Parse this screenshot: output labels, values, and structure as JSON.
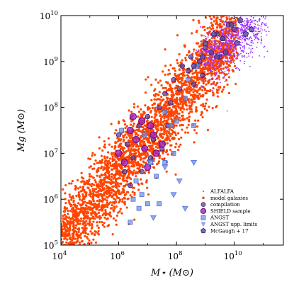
{
  "chart_data": {
    "type": "scatter",
    "xlabel": "M⋆ (M⊙)",
    "ylabel": "Mg (M⊙)",
    "xscale": "log",
    "yscale": "log",
    "xlim": [
      10000,
      500000000000
    ],
    "ylim": [
      100000,
      10000000000
    ],
    "x_ticks": [
      {
        "value": 10000,
        "base": "10",
        "exp": "4"
      },
      {
        "value": 1000000,
        "base": "10",
        "exp": "6"
      },
      {
        "value": 100000000,
        "base": "10",
        "exp": "8"
      },
      {
        "value": 10000000000,
        "base": "10",
        "exp": "10"
      }
    ],
    "y_ticks": [
      {
        "value": 100000,
        "base": "10",
        "exp": "5"
      },
      {
        "value": 1000000,
        "base": "10",
        "exp": "6"
      },
      {
        "value": 10000000,
        "base": "10",
        "exp": "7"
      },
      {
        "value": 100000000,
        "base": "10",
        "exp": "8"
      },
      {
        "value": 1000000000,
        "base": "10",
        "exp": "9"
      },
      {
        "value": 10000000000,
        "base": "10",
        "exp": "10"
      }
    ],
    "legend_position": "bottom-right",
    "series": [
      {
        "name": "ALFALFA",
        "marker": "dot",
        "color": "#9b30ff",
        "distribution": {
          "log_x_center": [
            9.0,
            10.9
          ],
          "log_y_center": [
            9.0,
            9.9
          ],
          "count": 900
        }
      },
      {
        "name": "model galaxies",
        "marker": "dot",
        "color": "#ff4500",
        "distribution": {
          "log_x_center": [
            4.0,
            10.0
          ],
          "log_y_center": [
            5.1,
            9.6
          ],
          "count": 3000
        }
      },
      {
        "name": "compilation",
        "marker": "circle",
        "color": "#6a3d9a",
        "points": [
          [
            6.0,
            7.4
          ],
          [
            6.3,
            7.2
          ],
          [
            6.5,
            6.9
          ],
          [
            6.7,
            7.6
          ],
          [
            7.0,
            7.8
          ],
          [
            7.2,
            7.3
          ],
          [
            7.4,
            8.0
          ],
          [
            7.5,
            7.1
          ],
          [
            7.6,
            8.3
          ],
          [
            7.8,
            8.1
          ],
          [
            7.9,
            8.6
          ],
          [
            8.1,
            8.4
          ],
          [
            8.2,
            8.9
          ],
          [
            8.4,
            8.8
          ],
          [
            8.5,
            9.1
          ],
          [
            8.6,
            8.5
          ],
          [
            8.8,
            9.0
          ],
          [
            9.0,
            9.3
          ],
          [
            9.2,
            9.2
          ],
          [
            9.4,
            9.6
          ],
          [
            9.6,
            9.5
          ],
          [
            9.8,
            9.8
          ],
          [
            10.0,
            9.7
          ],
          [
            6.4,
            6.3
          ],
          [
            6.8,
            6.6
          ],
          [
            7.1,
            6.9
          ],
          [
            6.2,
            6.6
          ],
          [
            7.7,
            7.6
          ],
          [
            8.9,
            8.7
          ],
          [
            9.5,
            9.1
          ]
        ]
      },
      {
        "name": "SHIELD sample",
        "marker": "circle-large",
        "color": "#a020c0",
        "points": [
          [
            6.0,
            7.0
          ],
          [
            6.4,
            7.5
          ],
          [
            6.6,
            7.3
          ],
          [
            6.9,
            7.1
          ],
          [
            7.1,
            7.6
          ],
          [
            7.3,
            7.0
          ],
          [
            6.8,
            7.7
          ],
          [
            7.5,
            7.2
          ],
          [
            6.2,
            6.8
          ],
          [
            7.0,
            6.7
          ],
          [
            6.5,
            7.8
          ],
          [
            7.2,
            7.4
          ]
        ]
      },
      {
        "name": "ANGST",
        "marker": "square",
        "color": "#6f8fe6",
        "points": [
          [
            7.0,
            5.9
          ],
          [
            7.4,
            5.9
          ],
          [
            6.6,
            6.4
          ],
          [
            6.8,
            6.1
          ],
          [
            7.6,
            6.8
          ],
          [
            7.8,
            7.6
          ],
          [
            6.4,
            5.5
          ],
          [
            8.0,
            7.7
          ],
          [
            8.6,
            7.6
          ],
          [
            8.3,
            8.2
          ],
          [
            6.1,
            7.5
          ],
          [
            7.3,
            6.5
          ],
          [
            7.9,
            7.0
          ],
          [
            6.7,
            5.8
          ],
          [
            8.4,
            8.6
          ],
          [
            8.7,
            8.9
          ],
          [
            7.1,
            6.8
          ],
          [
            6.5,
            6.0
          ],
          [
            7.6,
            7.9
          ],
          [
            6.9,
            7.4
          ]
        ]
      },
      {
        "name": "ANGST upp. limits",
        "marker": "triangle-down",
        "color": "#6f8fe6",
        "points": [
          [
            7.9,
            6.1
          ],
          [
            8.3,
            5.8
          ],
          [
            8.1,
            6.4
          ],
          [
            7.6,
            6.7
          ],
          [
            7.2,
            5.6
          ],
          [
            8.6,
            6.8
          ]
        ]
      },
      {
        "name": "McGaugh + 17",
        "marker": "pentagon",
        "color": "#5b4aa0",
        "points": [
          [
            8.6,
            8.9
          ],
          [
            9.0,
            9.4
          ],
          [
            9.3,
            9.6
          ],
          [
            9.6,
            9.5
          ],
          [
            9.9,
            9.8
          ],
          [
            10.2,
            9.9
          ],
          [
            10.4,
            9.6
          ],
          [
            9.7,
            9.2
          ],
          [
            10.1,
            9.4
          ],
          [
            8.9,
            9.1
          ],
          [
            9.4,
            9.1
          ],
          [
            10.6,
            9.7
          ]
        ]
      }
    ]
  }
}
